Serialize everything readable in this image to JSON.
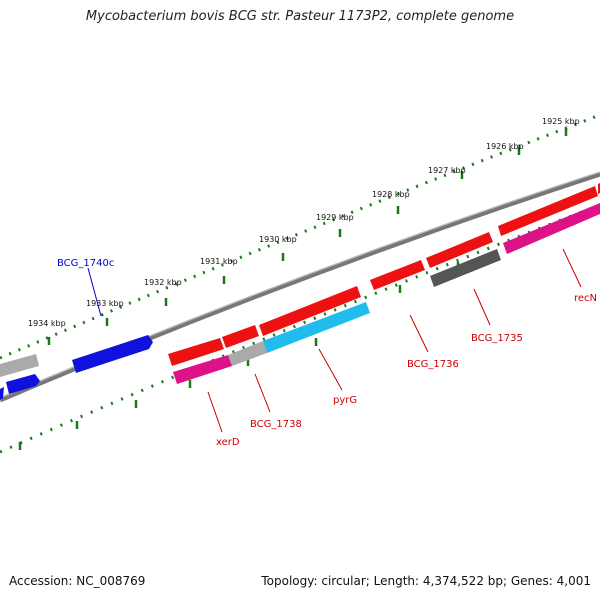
{
  "title": "Mycobacterium bovis BCG str. Pasteur 1173P2, complete genome",
  "footer": {
    "accession": "Accession: NC_008769",
    "summary": "Topology: circular; Length: 4,374,522 bp; Genes: 4,001"
  },
  "scale_labels": [
    "1925 kbp",
    "1926 kbp",
    "1927 kbp",
    "1928 kbp",
    "1929 kbp",
    "1930 kbp",
    "1931 kbp",
    "1932 kbp",
    "1933 kbp",
    "1934 kbp"
  ],
  "gene_labels": {
    "bcg_1740c": "BCG_1740c",
    "bcg_1735": "BCG_1735",
    "bcg_1736": "BCG_1736",
    "bcg_1738": "BCG_1738",
    "pyrg": "pyrG",
    "xerd": "xerD",
    "recn": "recN"
  },
  "colors": {
    "red": "#ee1111",
    "magenta": "#dd1188",
    "cyan": "#22bbee",
    "blue": "#1111dd",
    "dark_gray": "#555555",
    "light_gray": "#aaaaaa",
    "tick_green": "#1a7a1a",
    "label_red": "#cc0000",
    "label_blue": "#0000cc"
  }
}
